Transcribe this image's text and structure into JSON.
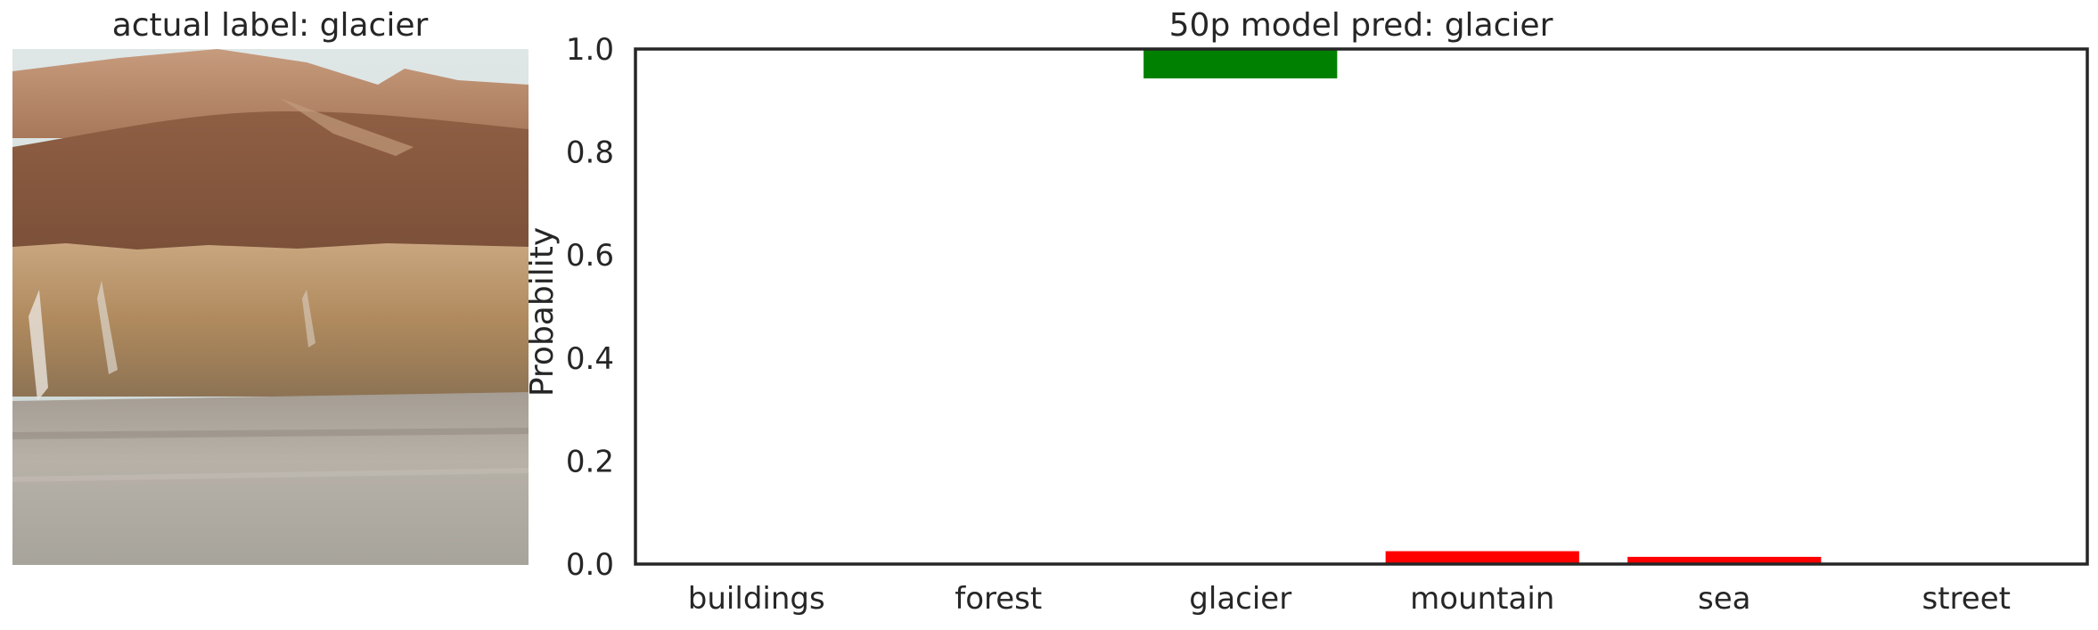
{
  "image_panel": {
    "title": "actual label: glacier"
  },
  "chart_data": {
    "type": "bar",
    "title": "50p model pred: glacier",
    "xlabel": "",
    "ylabel": "Probability",
    "categories": [
      "buildings",
      "forest",
      "glacier",
      "mountain",
      "sea",
      "street"
    ],
    "bars": [
      {
        "category": "buildings",
        "value": 0.0,
        "bottom": 0.0,
        "color": "#ff0000"
      },
      {
        "category": "forest",
        "value": 0.0,
        "bottom": 0.0,
        "color": "#ff0000"
      },
      {
        "category": "glacier",
        "value": 0.943,
        "bottom": 1.0,
        "color": "#008000"
      },
      {
        "category": "mountain",
        "value": 0.025,
        "bottom": 0.0,
        "color": "#ff0000"
      },
      {
        "category": "sea",
        "value": 0.014,
        "bottom": 0.0,
        "color": "#ff0000"
      },
      {
        "category": "street",
        "value": 0.0,
        "bottom": 0.0,
        "color": "#ff0000"
      }
    ],
    "ylim": [
      0.0,
      1.0
    ],
    "yticks": [
      "0.0",
      "0.2",
      "0.4",
      "0.6",
      "0.8",
      "1.0"
    ],
    "grid": false,
    "colors": {
      "predicted": "#008000",
      "other": "#ff0000"
    }
  }
}
